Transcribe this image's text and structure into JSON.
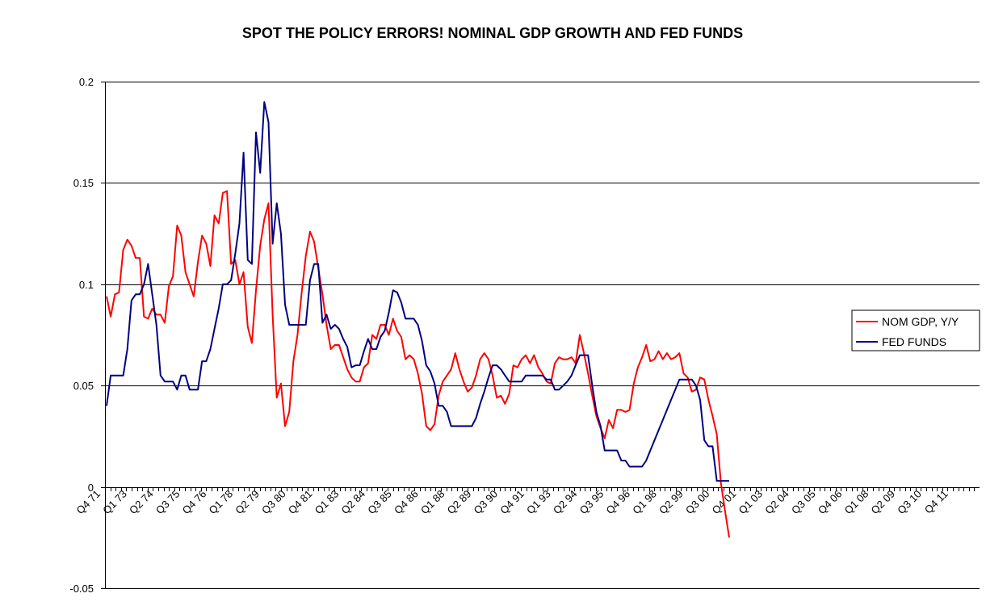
{
  "chart_data": {
    "type": "line",
    "title": "SPOT THE POLICY ERRORS!  NOMINAL GDP GROWTH AND FED FUNDS",
    "xlabel": "",
    "ylabel": "",
    "ylim": [
      -0.05,
      0.2
    ],
    "yticks": [
      -0.05,
      0,
      0.05,
      0.1,
      0.15,
      0.2
    ],
    "ytick_labels": [
      "-0.05",
      "0",
      "0.05",
      "0.1",
      "0.15",
      "0.2"
    ],
    "grid": true,
    "legend_position": "right",
    "quarter_start": "Q4 71",
    "quarter_count": 164,
    "xtick_labels": [
      "Q4 71",
      "Q1 73",
      "Q2 74",
      "Q3 75",
      "Q4 76",
      "Q1 78",
      "Q2 79",
      "Q3 80",
      "Q4 81",
      "Q1 83",
      "Q2 84",
      "Q3 85",
      "Q4 86",
      "Q1 88",
      "Q2 89",
      "Q3 90",
      "Q4 91",
      "Q1 93",
      "Q2 94",
      "Q3 95",
      "Q4 96",
      "Q1 98",
      "Q2 99",
      "Q3 00",
      "Q4 01",
      "Q1 03",
      "Q2 04",
      "Q3 05",
      "Q4 06",
      "Q1 08",
      "Q2 09",
      "Q3 10",
      "Q4 11"
    ],
    "series": [
      {
        "name": "NOM GDP, Y/Y",
        "color": "#ff0000",
        "points": [
          [
            0,
            0.094
          ],
          [
            1,
            0.084
          ],
          [
            2,
            0.095
          ],
          [
            3,
            0.096
          ],
          [
            4,
            0.117
          ],
          [
            5,
            0.122
          ],
          [
            6,
            0.119
          ],
          [
            7,
            0.113
          ],
          [
            8,
            0.113
          ],
          [
            9,
            0.084
          ],
          [
            10,
            0.083
          ],
          [
            11,
            0.088
          ],
          [
            12,
            0.085
          ],
          [
            13,
            0.085
          ],
          [
            14,
            0.081
          ],
          [
            15,
            0.099
          ],
          [
            16,
            0.104
          ],
          [
            17,
            0.129
          ],
          [
            18,
            0.124
          ],
          [
            19,
            0.106
          ],
          [
            20,
            0.1
          ],
          [
            21,
            0.094
          ],
          [
            22,
            0.111
          ],
          [
            23,
            0.124
          ],
          [
            24,
            0.12
          ],
          [
            25,
            0.109
          ],
          [
            26,
            0.134
          ],
          [
            27,
            0.13
          ],
          [
            28,
            0.145
          ],
          [
            29,
            0.146
          ],
          [
            30,
            0.11
          ],
          [
            31,
            0.112
          ],
          [
            32,
            0.1
          ],
          [
            33,
            0.106
          ],
          [
            34,
            0.079
          ],
          [
            35,
            0.071
          ],
          [
            36,
            0.097
          ],
          [
            37,
            0.119
          ],
          [
            38,
            0.132
          ],
          [
            39,
            0.14
          ],
          [
            40,
            0.085
          ],
          [
            41,
            0.044
          ],
          [
            42,
            0.051
          ],
          [
            43,
            0.03
          ],
          [
            44,
            0.037
          ],
          [
            45,
            0.062
          ],
          [
            46,
            0.075
          ],
          [
            47,
            0.096
          ],
          [
            48,
            0.114
          ],
          [
            49,
            0.126
          ],
          [
            50,
            0.121
          ],
          [
            51,
            0.108
          ],
          [
            52,
            0.095
          ],
          [
            53,
            0.08
          ],
          [
            54,
            0.068
          ],
          [
            55,
            0.07
          ],
          [
            56,
            0.07
          ],
          [
            57,
            0.064
          ],
          [
            58,
            0.058
          ],
          [
            59,
            0.054
          ],
          [
            60,
            0.052
          ],
          [
            61,
            0.052
          ],
          [
            62,
            0.059
          ],
          [
            63,
            0.061
          ],
          [
            64,
            0.075
          ],
          [
            65,
            0.073
          ],
          [
            66,
            0.08
          ],
          [
            67,
            0.08
          ],
          [
            68,
            0.075
          ],
          [
            69,
            0.083
          ],
          [
            70,
            0.077
          ],
          [
            71,
            0.074
          ],
          [
            72,
            0.063
          ],
          [
            73,
            0.065
          ],
          [
            74,
            0.063
          ],
          [
            75,
            0.056
          ],
          [
            76,
            0.046
          ],
          [
            77,
            0.03
          ],
          [
            78,
            0.028
          ],
          [
            79,
            0.031
          ],
          [
            80,
            0.045
          ],
          [
            81,
            0.052
          ],
          [
            82,
            0.055
          ],
          [
            83,
            0.058
          ],
          [
            84,
            0.066
          ],
          [
            85,
            0.058
          ],
          [
            86,
            0.052
          ],
          [
            87,
            0.047
          ],
          [
            88,
            0.049
          ],
          [
            89,
            0.055
          ],
          [
            90,
            0.063
          ],
          [
            91,
            0.066
          ],
          [
            92,
            0.063
          ],
          [
            93,
            0.055
          ],
          [
            94,
            0.044
          ],
          [
            95,
            0.045
          ],
          [
            96,
            0.041
          ],
          [
            97,
            0.046
          ],
          [
            98,
            0.06
          ],
          [
            99,
            0.059
          ],
          [
            100,
            0.063
          ],
          [
            101,
            0.065
          ],
          [
            102,
            0.061
          ],
          [
            103,
            0.065
          ],
          [
            104,
            0.059
          ],
          [
            105,
            0.056
          ],
          [
            106,
            0.052
          ],
          [
            107,
            0.051
          ],
          [
            108,
            0.061
          ],
          [
            109,
            0.064
          ],
          [
            110,
            0.063
          ],
          [
            111,
            0.063
          ],
          [
            112,
            0.064
          ],
          [
            113,
            0.061
          ],
          [
            114,
            0.075
          ],
          [
            115,
            0.066
          ],
          [
            116,
            0.056
          ],
          [
            117,
            0.045
          ],
          [
            118,
            0.035
          ],
          [
            119,
            0.029
          ],
          [
            120,
            0.024
          ],
          [
            121,
            0.033
          ],
          [
            122,
            0.029
          ],
          [
            123,
            0.038
          ],
          [
            124,
            0.038
          ],
          [
            125,
            0.037
          ],
          [
            126,
            0.038
          ],
          [
            127,
            0.051
          ],
          [
            128,
            0.059
          ],
          [
            129,
            0.064
          ],
          [
            130,
            0.07
          ],
          [
            131,
            0.062
          ],
          [
            132,
            0.063
          ],
          [
            133,
            0.067
          ],
          [
            134,
            0.063
          ],
          [
            135,
            0.066
          ],
          [
            136,
            0.063
          ],
          [
            137,
            0.064
          ],
          [
            138,
            0.066
          ],
          [
            139,
            0.056
          ],
          [
            140,
            0.054
          ],
          [
            141,
            0.047
          ],
          [
            142,
            0.048
          ],
          [
            143,
            0.054
          ],
          [
            144,
            0.053
          ],
          [
            145,
            0.043
          ],
          [
            146,
            0.035
          ],
          [
            147,
            0.026
          ],
          [
            148,
            0.002
          ],
          [
            149,
            -0.012
          ],
          [
            150,
            -0.025
          ]
        ]
      },
      {
        "name": "FED FUNDS",
        "color": "#000080",
        "points": [
          [
            0,
            0.04
          ],
          [
            1,
            0.055
          ],
          [
            2,
            0.055
          ],
          [
            3,
            0.055
          ],
          [
            4,
            0.055
          ],
          [
            5,
            0.068
          ],
          [
            6,
            0.092
          ],
          [
            7,
            0.095
          ],
          [
            8,
            0.095
          ],
          [
            9,
            0.1
          ],
          [
            10,
            0.11
          ],
          [
            11,
            0.095
          ],
          [
            12,
            0.08
          ],
          [
            13,
            0.055
          ],
          [
            14,
            0.052
          ],
          [
            15,
            0.052
          ],
          [
            16,
            0.052
          ],
          [
            17,
            0.048
          ],
          [
            18,
            0.055
          ],
          [
            19,
            0.055
          ],
          [
            20,
            0.048
          ],
          [
            21,
            0.048
          ],
          [
            22,
            0.048
          ],
          [
            23,
            0.062
          ],
          [
            24,
            0.062
          ],
          [
            25,
            0.068
          ],
          [
            26,
            0.078
          ],
          [
            27,
            0.088
          ],
          [
            28,
            0.1
          ],
          [
            29,
            0.1
          ],
          [
            30,
            0.102
          ],
          [
            31,
            0.115
          ],
          [
            32,
            0.13
          ],
          [
            33,
            0.165
          ],
          [
            34,
            0.112
          ],
          [
            35,
            0.11
          ],
          [
            36,
            0.175
          ],
          [
            37,
            0.155
          ],
          [
            38,
            0.19
          ],
          [
            39,
            0.18
          ],
          [
            40,
            0.12
          ],
          [
            41,
            0.14
          ],
          [
            42,
            0.125
          ],
          [
            43,
            0.09
          ],
          [
            44,
            0.08
          ],
          [
            45,
            0.08
          ],
          [
            46,
            0.08
          ],
          [
            47,
            0.08
          ],
          [
            48,
            0.08
          ],
          [
            49,
            0.102
          ],
          [
            50,
            0.11
          ],
          [
            51,
            0.11
          ],
          [
            52,
            0.081
          ],
          [
            53,
            0.085
          ],
          [
            54,
            0.078
          ],
          [
            55,
            0.08
          ],
          [
            56,
            0.078
          ],
          [
            57,
            0.073
          ],
          [
            58,
            0.069
          ],
          [
            59,
            0.059
          ],
          [
            60,
            0.06
          ],
          [
            61,
            0.06
          ],
          [
            62,
            0.067
          ],
          [
            63,
            0.073
          ],
          [
            64,
            0.068
          ],
          [
            65,
            0.068
          ],
          [
            66,
            0.074
          ],
          [
            67,
            0.077
          ],
          [
            68,
            0.086
          ],
          [
            69,
            0.097
          ],
          [
            70,
            0.096
          ],
          [
            71,
            0.091
          ],
          [
            72,
            0.083
          ],
          [
            73,
            0.083
          ],
          [
            74,
            0.083
          ],
          [
            75,
            0.08
          ],
          [
            76,
            0.072
          ],
          [
            77,
            0.06
          ],
          [
            78,
            0.057
          ],
          [
            79,
            0.051
          ],
          [
            80,
            0.04
          ],
          [
            81,
            0.04
          ],
          [
            82,
            0.037
          ],
          [
            83,
            0.03
          ],
          [
            84,
            0.03
          ],
          [
            85,
            0.03
          ],
          [
            86,
            0.03
          ],
          [
            87,
            0.03
          ],
          [
            88,
            0.03
          ],
          [
            89,
            0.034
          ],
          [
            90,
            0.041
          ],
          [
            91,
            0.047
          ],
          [
            92,
            0.054
          ],
          [
            93,
            0.06
          ],
          [
            94,
            0.06
          ],
          [
            95,
            0.058
          ],
          [
            96,
            0.055
          ],
          [
            97,
            0.052
          ],
          [
            98,
            0.052
          ],
          [
            99,
            0.052
          ],
          [
            100,
            0.052
          ],
          [
            101,
            0.055
          ],
          [
            102,
            0.055
          ],
          [
            103,
            0.055
          ],
          [
            104,
            0.055
          ],
          [
            105,
            0.055
          ],
          [
            106,
            0.053
          ],
          [
            107,
            0.053
          ],
          [
            108,
            0.048
          ],
          [
            109,
            0.048
          ],
          [
            110,
            0.05
          ],
          [
            111,
            0.052
          ],
          [
            112,
            0.055
          ],
          [
            113,
            0.06
          ],
          [
            114,
            0.065
          ],
          [
            115,
            0.065
          ],
          [
            116,
            0.065
          ],
          [
            117,
            0.05
          ],
          [
            118,
            0.037
          ],
          [
            119,
            0.03
          ],
          [
            120,
            0.018
          ],
          [
            121,
            0.018
          ],
          [
            122,
            0.018
          ],
          [
            123,
            0.018
          ],
          [
            124,
            0.013
          ],
          [
            125,
            0.013
          ],
          [
            126,
            0.01
          ],
          [
            127,
            0.01
          ],
          [
            128,
            0.01
          ],
          [
            129,
            0.01
          ],
          [
            130,
            0.013
          ],
          [
            131,
            0.018
          ],
          [
            132,
            0.023
          ],
          [
            133,
            0.028
          ],
          [
            134,
            0.033
          ],
          [
            135,
            0.038
          ],
          [
            136,
            0.043
          ],
          [
            137,
            0.048
          ],
          [
            138,
            0.053
          ],
          [
            139,
            0.053
          ],
          [
            140,
            0.053
          ],
          [
            141,
            0.053
          ],
          [
            142,
            0.05
          ],
          [
            143,
            0.043
          ],
          [
            144,
            0.023
          ],
          [
            145,
            0.02
          ],
          [
            146,
            0.02
          ],
          [
            147,
            0.003
          ],
          [
            148,
            0.003
          ],
          [
            149,
            0.003
          ],
          [
            150,
            0.003
          ]
        ]
      }
    ]
  }
}
